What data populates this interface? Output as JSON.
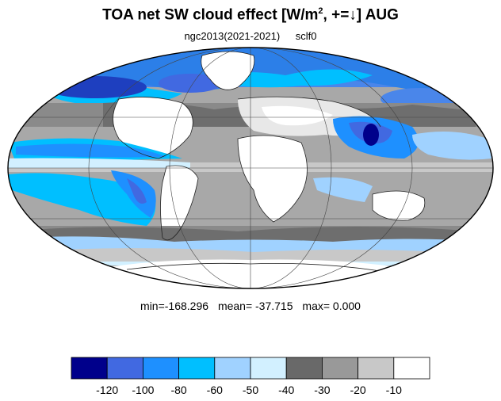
{
  "title": {
    "main": "TOA net SW cloud effect [W/m",
    "sup": "2",
    "tail": ", +=↓]  AUG"
  },
  "subtitle": {
    "left": "ngc2013(2021-2021)",
    "right": "sclf0"
  },
  "stats": {
    "min": "min=-168.296",
    "mean": "mean= -37.715",
    "max": "max=   0.000"
  },
  "colorbar": {
    "colors": [
      "#00008b",
      "#4169e1",
      "#1e90ff",
      "#00bfff",
      "#a0d2ff",
      "#d2f0ff",
      "#696969",
      "#999999",
      "#c8c8c8",
      "#ffffff"
    ],
    "tick_labels": [
      "-120",
      "-100",
      "-80",
      "-60",
      "-50",
      "-40",
      "-30",
      "-20",
      "-10"
    ]
  }
}
